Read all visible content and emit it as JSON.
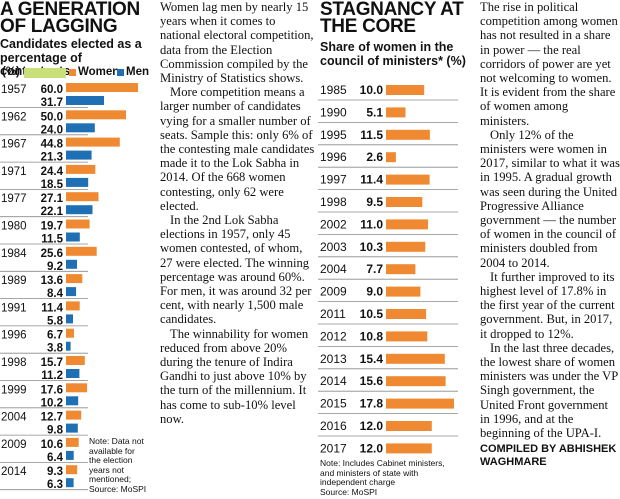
{
  "left_chart": {
    "headline": "A GENERATION\nOF LAGGING",
    "subtitle": "Candidates elected as a\npercentage of contestants",
    "unit_label": "(%)",
    "legend": {
      "women_label": "Women",
      "men_label": "Men"
    },
    "note": [
      "Note: Data not",
      "available for",
      "the election",
      "years not",
      "mentioned;",
      "Source: MoSPI"
    ]
  },
  "middle_text": {
    "paragraphs": [
      "Women lag men by nearly 15 years when it comes to national electoral competition, data from the Election Commission compiled by the Ministry of Statistics shows.",
      "More competition means a larger number of candidates vying for a smaller number of seats. Sample this: only 6% of the contesting male candidates made it to the Lok Sabha in 2014. Of the 668 women contesting, only 62 were elected.",
      "In the 2nd Lok Sabha elections in 1957, only 45 women contested, of whom, 27 were elected. The winning percentage was around 60%. For men, it was around 32 per cent, with nearly 1,500 male candidates.",
      "The winnability for women reduced from above 20% during the tenure of Indira Gandhi to just above 10% by the turn of the millennium. It has come to sub-10% level now."
    ]
  },
  "right_chart": {
    "headline": "STAGNANCY AT\nTHE CORE",
    "subtitle": "Share of women in the\ncouncil of ministers* (%)",
    "note": [
      "Note: Includes Cabinet ministers,",
      "and ministers of state with",
      "independent charge",
      "Source: MoSPI"
    ]
  },
  "right_text": {
    "paragraphs": [
      "The rise in political competition among women has not resulted in a share in power — the real corridors of power are yet not welcoming to women. It is evident from the share of women among ministers.",
      "Only 12% of the ministers were women in 2017, similar to what it was in 1995. A gradual growth was seen during the United Progressive Alliance government — the number of women in the council of ministers doubled from 2004 to 2014.",
      "It further improved to its highest level of 17.8% in the first year of the current government. But, in 2017, it dropped to 12%.",
      "In the last three decades, the lowest share of women ministers was under the VP Singh government, the United Front government in 1996, and at the beginning of the UPA-I."
    ],
    "credit": "COMPILED BY ABHISHEK\nWAGHMARE"
  },
  "colors": {
    "women": "#f08a32",
    "men": "#1f6fb5",
    "legend_women_swatch": "#c9e07a",
    "gridline": "#8a8a8a",
    "text": "#111111"
  },
  "chart_data": [
    {
      "type": "bar",
      "orientation": "horizontal",
      "title": "Candidates elected as a percentage of contestants",
      "unit": "%",
      "categories": [
        "1957",
        "1962",
        "1967",
        "1971",
        "1977",
        "1980",
        "1984",
        "1989",
        "1991",
        "1996",
        "1998",
        "1999",
        "2004",
        "2009",
        "2014"
      ],
      "series": [
        {
          "name": "Women",
          "values": [
            60.0,
            50.0,
            44.8,
            24.4,
            27.1,
            19.7,
            25.6,
            13.6,
            11.4,
            6.7,
            15.7,
            17.6,
            12.7,
            10.6,
            9.3
          ]
        },
        {
          "name": "Men",
          "values": [
            31.7,
            24.0,
            21.3,
            18.5,
            22.1,
            11.5,
            9.2,
            8.4,
            5.8,
            3.8,
            11.2,
            10.2,
            9.8,
            6.4,
            6.3
          ]
        }
      ],
      "xlim": [
        0,
        60
      ]
    },
    {
      "type": "bar",
      "orientation": "horizontal",
      "title": "Share of women in the council of ministers* (%)",
      "unit": "%",
      "categories": [
        "1985",
        "1990",
        "1995",
        "1996",
        "1997",
        "1998",
        "2002",
        "2003",
        "2004",
        "2009",
        "2011",
        "2012",
        "2013",
        "2014",
        "2015",
        "2016",
        "2017"
      ],
      "values": [
        10.0,
        5.1,
        11.5,
        2.6,
        11.4,
        9.5,
        11.0,
        10.3,
        7.7,
        9.0,
        10.5,
        10.8,
        15.4,
        15.6,
        17.8,
        12.0,
        12.0
      ],
      "xlim": [
        0,
        17.8
      ]
    }
  ]
}
